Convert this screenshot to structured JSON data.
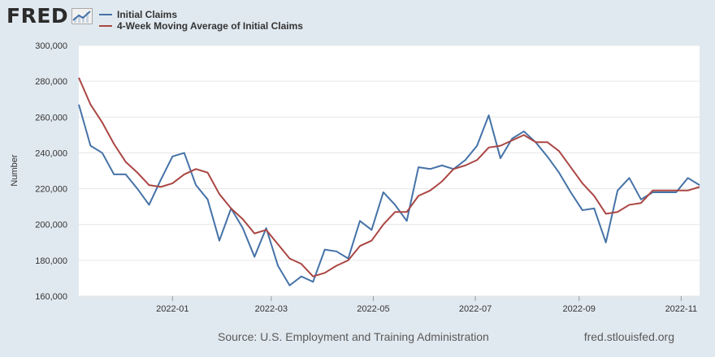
{
  "header": {
    "logo_text": "FRED",
    "logo_icon": "trend-chart-icon"
  },
  "colors": {
    "series_1": "#4572a7",
    "series_2": "#aa4643",
    "background": "#e1e9f0",
    "plot_background": "#ffffff",
    "gridline": "#e6e6e6"
  },
  "footer": {
    "source": "Source: U.S. Employment and Training Administration",
    "site": "fred.stlouisfed.org"
  },
  "chart_data": {
    "type": "line",
    "ylabel": "Number",
    "ylim": [
      160000,
      300000
    ],
    "y_ticks": [
      160000,
      180000,
      200000,
      220000,
      240000,
      260000,
      280000,
      300000
    ],
    "y_tick_labels": [
      "160,000",
      "180,000",
      "200,000",
      "220,000",
      "240,000",
      "260,000",
      "280,000",
      "300,000"
    ],
    "x_ticks": [
      "2022-01",
      "2022-03",
      "2022-05",
      "2022-07",
      "2022-09",
      "2022-11"
    ],
    "x_tick_dates": [
      "2022-01-01",
      "2022-03-01",
      "2022-05-01",
      "2022-07-01",
      "2022-09-01",
      "2022-11-01"
    ],
    "xlim": [
      "2021-11-06",
      "2022-11-12"
    ],
    "grid": true,
    "legend_position": "top-left",
    "x": [
      "2021-11-06",
      "2021-11-13",
      "2021-11-20",
      "2021-11-27",
      "2021-12-04",
      "2021-12-11",
      "2021-12-18",
      "2021-12-25",
      "2022-01-01",
      "2022-01-08",
      "2022-01-15",
      "2022-01-22",
      "2022-01-29",
      "2022-02-05",
      "2022-02-12",
      "2022-02-19",
      "2022-02-26",
      "2022-03-05",
      "2022-03-12",
      "2022-03-19",
      "2022-03-26",
      "2022-04-02",
      "2022-04-09",
      "2022-04-16",
      "2022-04-23",
      "2022-04-30",
      "2022-05-07",
      "2022-05-14",
      "2022-05-21",
      "2022-05-28",
      "2022-06-04",
      "2022-06-11",
      "2022-06-18",
      "2022-06-25",
      "2022-07-02",
      "2022-07-09",
      "2022-07-16",
      "2022-07-23",
      "2022-07-30",
      "2022-08-06",
      "2022-08-13",
      "2022-08-20",
      "2022-08-27",
      "2022-09-03",
      "2022-09-10",
      "2022-09-17",
      "2022-09-24",
      "2022-10-01",
      "2022-10-08",
      "2022-10-15",
      "2022-10-22",
      "2022-10-29",
      "2022-11-05",
      "2022-11-12"
    ],
    "series": [
      {
        "name": "Initial Claims",
        "color": "#4572a7",
        "values": [
          267000,
          244000,
          240000,
          228000,
          228000,
          220000,
          211000,
          225000,
          238000,
          240000,
          222000,
          214000,
          191000,
          209000,
          198000,
          182000,
          198000,
          177000,
          166000,
          171000,
          168000,
          186000,
          185000,
          181000,
          202000,
          197000,
          218000,
          211000,
          202000,
          232000,
          231000,
          233000,
          231000,
          236000,
          244000,
          261000,
          237000,
          248000,
          252000,
          246000,
          238000,
          229000,
          218000,
          208000,
          209000,
          190000,
          219000,
          226000,
          214000,
          218000,
          218000,
          218000,
          226000,
          222000
        ]
      },
      {
        "name": "4-Week Moving Average of Initial Claims",
        "color": "#aa4643",
        "values": [
          282000,
          267000,
          257000,
          245000,
          235000,
          229000,
          222000,
          221000,
          223000,
          228000,
          231000,
          229000,
          217000,
          209000,
          203000,
          195000,
          197000,
          189000,
          181000,
          178000,
          171000,
          173000,
          177000,
          180000,
          188000,
          191000,
          200000,
          207000,
          207000,
          216000,
          219000,
          224000,
          231000,
          233000,
          236000,
          243000,
          244000,
          247000,
          250000,
          246000,
          246000,
          241000,
          232000,
          223000,
          216000,
          206000,
          207000,
          211000,
          212000,
          219000,
          219000,
          219000,
          219000,
          221000
        ]
      }
    ]
  }
}
